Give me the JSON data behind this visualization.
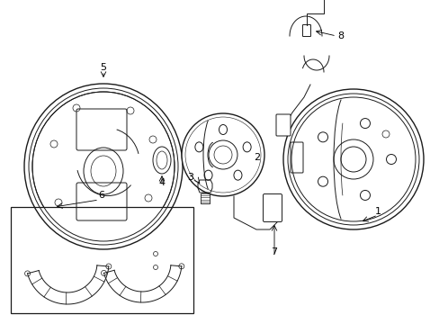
{
  "bg_color": "#ffffff",
  "line_color": "#1a1a1a",
  "figsize": [
    4.89,
    3.6
  ],
  "dpi": 100,
  "lw": 0.7,
  "label_fs": 8
}
